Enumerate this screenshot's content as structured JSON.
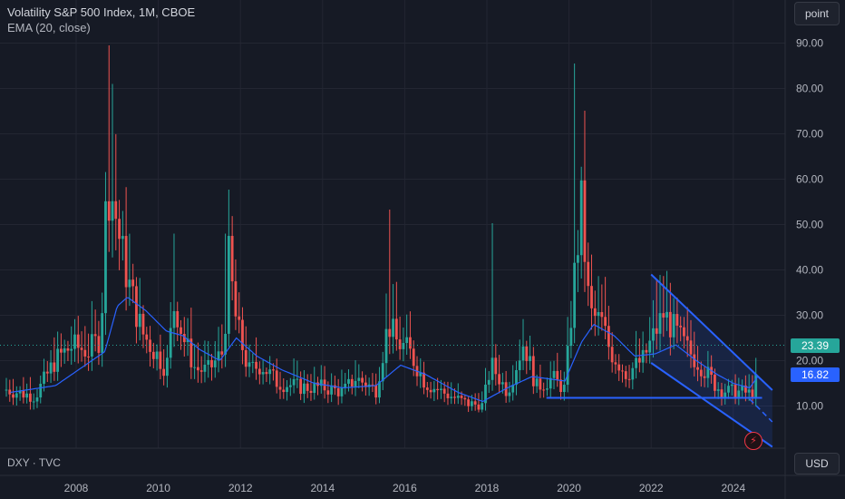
{
  "legend": {
    "title": "Volatility S&P 500 Index, 1M, CBOE",
    "ema_label": "EMA (20, close)"
  },
  "controls": {
    "scale_mode": "point",
    "currency": "USD"
  },
  "compare_symbol": "DXY · TVC",
  "current_value_label": "23.39",
  "ema_value_label": "16.82",
  "colors": {
    "up": "#26a69a",
    "down": "#ef5350",
    "ema": "#2962ff",
    "drawing": "#2962ff",
    "background": "#161a25",
    "grid": "#232632",
    "axis_text": "#b2b5be",
    "current_tag": "#26a69a",
    "ema_tag": "#2962ff"
  },
  "chart_data": {
    "type": "candlestick",
    "symbol": "VIX",
    "interval": "1M",
    "y_ticks": [
      "10.00",
      "20.00",
      "30.00",
      "40.00",
      "50.00",
      "60.00",
      "70.00",
      "80.00",
      "90.00"
    ],
    "x_ticks": [
      "2008",
      "2010",
      "2012",
      "2014",
      "2016",
      "2018",
      "2020",
      "2022",
      "2024"
    ],
    "ylim": [
      0,
      94
    ],
    "xlim": [
      2006.2,
      2025.0
    ],
    "grid": true,
    "current_value": 23.39,
    "ema_value": 16.82,
    "anchors": [
      [
        2006.3,
        13.5
      ],
      [
        2007.0,
        12.0
      ],
      [
        2007.5,
        20.0
      ],
      [
        2007.9,
        23.0
      ],
      [
        2008.3,
        22.0
      ],
      [
        2008.6,
        25.0
      ],
      [
        2008.75,
        59.0
      ],
      [
        2008.9,
        55.0
      ],
      [
        2009.1,
        44.0
      ],
      [
        2009.3,
        36.0
      ],
      [
        2009.6,
        26.0
      ],
      [
        2009.9,
        22.0
      ],
      [
        2010.2,
        18.0
      ],
      [
        2010.4,
        33.0
      ],
      [
        2010.6,
        25.0
      ],
      [
        2010.9,
        18.0
      ],
      [
        2011.2,
        17.5
      ],
      [
        2011.6,
        22.0
      ],
      [
        2011.7,
        43.0
      ],
      [
        2011.9,
        28.0
      ],
      [
        2012.2,
        17.5
      ],
      [
        2012.5,
        19.0
      ],
      [
        2012.9,
        15.0
      ],
      [
        2013.5,
        14.0
      ],
      [
        2014.0,
        14.0
      ],
      [
        2014.5,
        13.0
      ],
      [
        2014.8,
        16.0
      ],
      [
        2015.3,
        13.5
      ],
      [
        2015.6,
        28.0
      ],
      [
        2015.8,
        24.0
      ],
      [
        2016.1,
        22.0
      ],
      [
        2016.5,
        15.0
      ],
      [
        2016.9,
        13.0
      ],
      [
        2017.5,
        10.5
      ],
      [
        2017.9,
        10.0
      ],
      [
        2018.1,
        19.0
      ],
      [
        2018.5,
        13.0
      ],
      [
        2018.9,
        24.0
      ],
      [
        2019.2,
        14.0
      ],
      [
        2019.6,
        16.0
      ],
      [
        2019.9,
        13.5
      ],
      [
        2020.15,
        40.0
      ],
      [
        2020.3,
        53.0
      ],
      [
        2020.5,
        30.0
      ],
      [
        2020.8,
        28.0
      ],
      [
        2021.0,
        22.0
      ],
      [
        2021.4,
        17.0
      ],
      [
        2021.8,
        20.0
      ],
      [
        2022.1,
        26.0
      ],
      [
        2022.3,
        30.0
      ],
      [
        2022.6,
        26.0
      ],
      [
        2022.9,
        22.0
      ],
      [
        2023.2,
        19.0
      ],
      [
        2023.6,
        14.0
      ],
      [
        2023.9,
        13.0
      ],
      [
        2024.2,
        13.0
      ],
      [
        2024.45,
        12.5
      ],
      [
        2024.58,
        16.0
      ],
      [
        2024.62,
        23.39
      ]
    ],
    "spikes": [
      [
        2008.8,
        89.5
      ],
      [
        2008.9,
        81.0
      ],
      [
        2009.0,
        57.0
      ],
      [
        2010.35,
        48.0
      ],
      [
        2011.65,
        48.0
      ],
      [
        2015.6,
        53.3
      ],
      [
        2018.1,
        50.3
      ],
      [
        2020.15,
        85.5
      ],
      [
        2022.15,
        38.0
      ],
      [
        2024.6,
        29.7
      ]
    ],
    "ema_anchors": [
      [
        2006.4,
        13.0
      ],
      [
        2007.5,
        14.5
      ],
      [
        2008.3,
        19.5
      ],
      [
        2008.7,
        22.0
      ],
      [
        2009.0,
        32.0
      ],
      [
        2009.25,
        34.0
      ],
      [
        2009.7,
        31.0
      ],
      [
        2010.2,
        26.5
      ],
      [
        2010.6,
        25.5
      ],
      [
        2011.0,
        22.5
      ],
      [
        2011.5,
        20.0
      ],
      [
        2011.9,
        25.0
      ],
      [
        2012.4,
        21.0
      ],
      [
        2013.0,
        18.0
      ],
      [
        2013.8,
        15.0
      ],
      [
        2014.5,
        14.0
      ],
      [
        2015.3,
        14.5
      ],
      [
        2015.9,
        19.0
      ],
      [
        2016.5,
        17.0
      ],
      [
        2017.3,
        13.0
      ],
      [
        2017.9,
        11.0
      ],
      [
        2018.5,
        14.0
      ],
      [
        2019.1,
        16.5
      ],
      [
        2019.9,
        15.5
      ],
      [
        2020.3,
        24.0
      ],
      [
        2020.6,
        28.0
      ],
      [
        2021.1,
        25.5
      ],
      [
        2021.6,
        21.0
      ],
      [
        2022.1,
        21.5
      ],
      [
        2022.6,
        23.5
      ],
      [
        2023.1,
        20.0
      ],
      [
        2023.6,
        17.0
      ],
      [
        2024.0,
        15.0
      ],
      [
        2024.4,
        14.0
      ],
      [
        2024.62,
        16.82
      ]
    ],
    "drawings": {
      "descending_channel_upper": [
        [
          2022.0,
          39.0
        ],
        [
          2024.95,
          13.5
        ]
      ],
      "descending_channel_lower": [
        [
          2022.0,
          19.5
        ],
        [
          2024.95,
          1.0
        ]
      ],
      "channel_mid_dashed": [
        [
          2024.4,
          11.5
        ],
        [
          2024.95,
          6.5
        ]
      ],
      "support_line": [
        [
          2019.45,
          11.8
        ],
        [
          2024.7,
          11.8
        ]
      ]
    }
  }
}
